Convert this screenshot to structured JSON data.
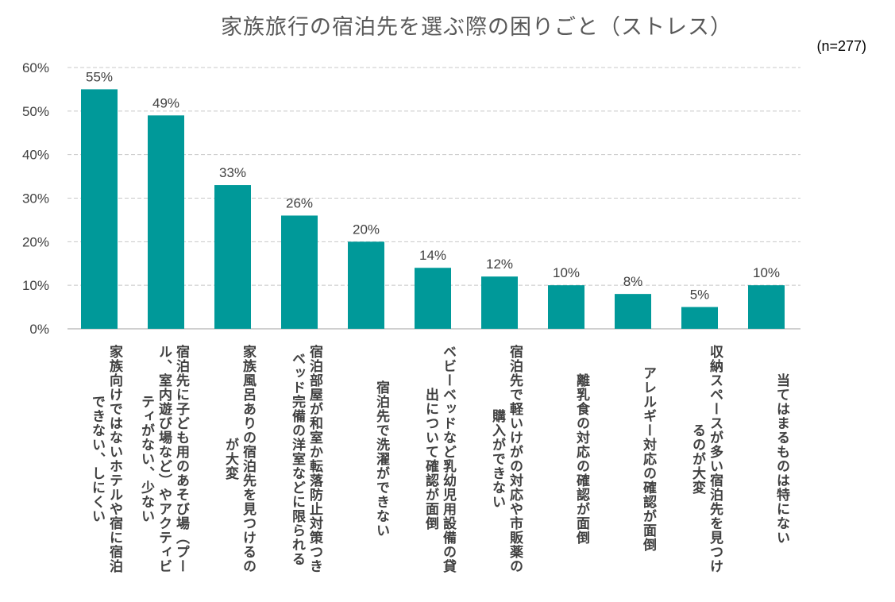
{
  "chart_data": {
    "type": "bar",
    "title": "家族旅行の宿泊先を選ぶ際の困りごと（ストレス）",
    "note": "(n=277)",
    "categories": [
      "家族向けではないホテルや宿に宿泊できない、しにくい",
      "宿泊先に子ども用のあそび場（プール、室内遊び場など）やアクティビティがない、少ない",
      "家族風呂ありの宿泊先を見つけるのが大変",
      "宿泊部屋が和室か転落防止対策つきベッド完備の洋室などに限られる",
      "宿泊先で洗濯ができない",
      "ベビーベッドなど乳幼児用設備の貸出について確認が面倒",
      "宿泊先で軽いけがの対応や市販薬の購入ができない",
      "離乳食の対応の確認が面倒",
      "アレルギー対応の確認が面倒",
      "収納スペースが多い宿泊先を見つけるのが大変",
      "当てはまるものは特にない"
    ],
    "values": [
      55,
      49,
      33,
      26,
      20,
      14,
      12,
      10,
      8,
      5,
      10
    ],
    "data_labels": [
      "55%",
      "49%",
      "33%",
      "26%",
      "20%",
      "14%",
      "12%",
      "10%",
      "8%",
      "5%",
      "10%"
    ],
    "ylim": [
      0,
      60
    ],
    "yticks": [
      "0%",
      "10%",
      "20%",
      "30%",
      "40%",
      "50%",
      "60%"
    ],
    "grid": true,
    "bar_color": "#009999"
  }
}
